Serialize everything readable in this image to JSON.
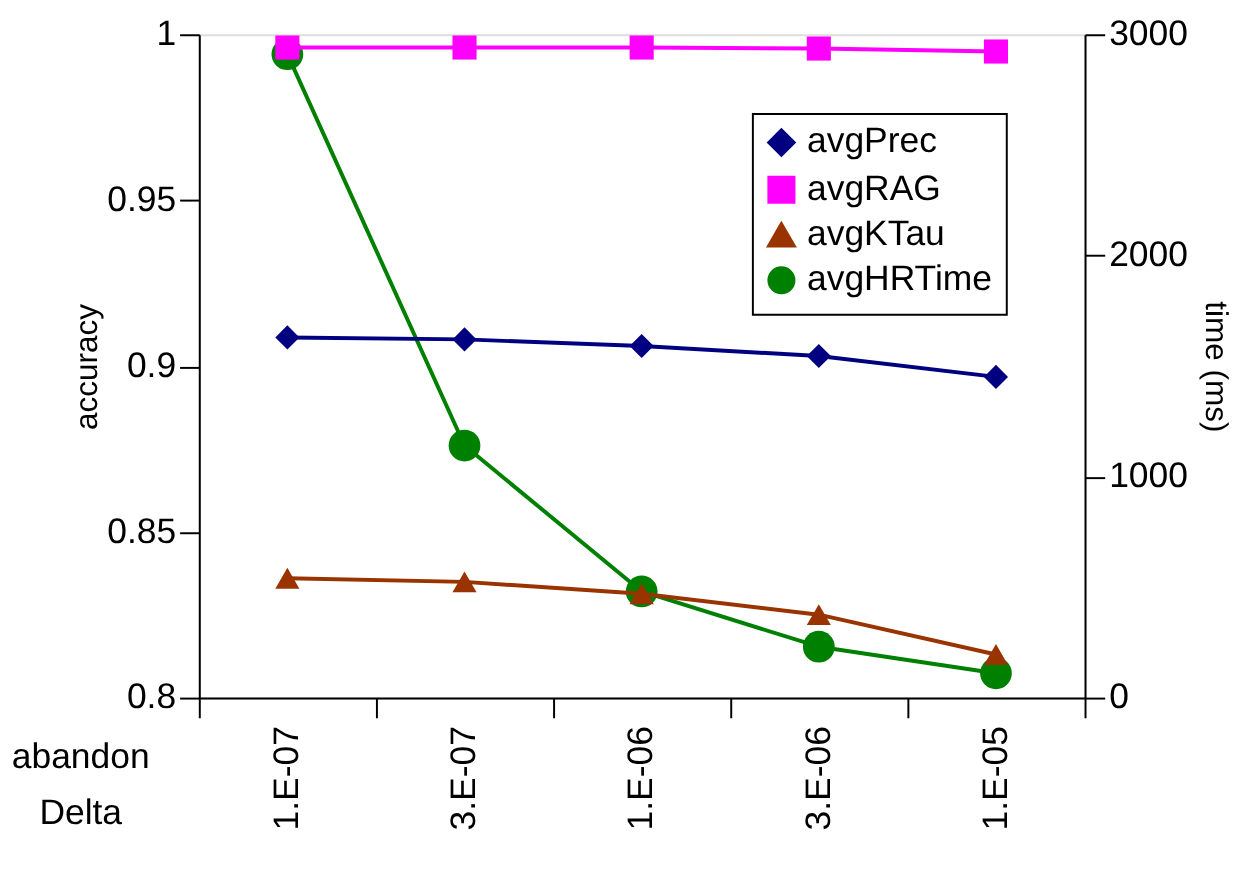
{
  "chart_data": {
    "type": "line",
    "xlabel": "abandon Delta",
    "ylabel": "accuracy",
    "y2label": "time (ms)",
    "categories": [
      "1.E-07",
      "3.E-07",
      "1.E-06",
      "3.E-06",
      "1.E-05"
    ],
    "ylim": [
      0.8,
      1
    ],
    "yticks": [
      0.8,
      0.85,
      0.9,
      0.95,
      1
    ],
    "y2lim": [
      0,
      3000
    ],
    "y2ticks": [
      0,
      1000,
      2000,
      3000
    ],
    "grid": false,
    "legend": "top right",
    "series": [
      {
        "name": "avgPrec",
        "color": "#000080",
        "marker": "diamond",
        "values": [
          0.9086,
          0.908,
          0.906,
          0.903,
          0.8967
        ]
      },
      {
        "name": "avgRAG",
        "color": "#ff00ff",
        "marker": "square",
        "values": [
          0.996,
          0.996,
          0.996,
          0.9957,
          0.9948
        ]
      },
      {
        "name": "avgKTau",
        "color": "#993300",
        "marker": "triangle",
        "values": [
          0.836,
          0.8349,
          0.8313,
          0.825,
          0.813
        ]
      },
      {
        "name": "avgHRTime",
        "color": "#008000",
        "marker": "circle",
        "axis": "y2",
        "values": [
          2910,
          1140,
          480,
          230,
          110
        ]
      }
    ]
  }
}
